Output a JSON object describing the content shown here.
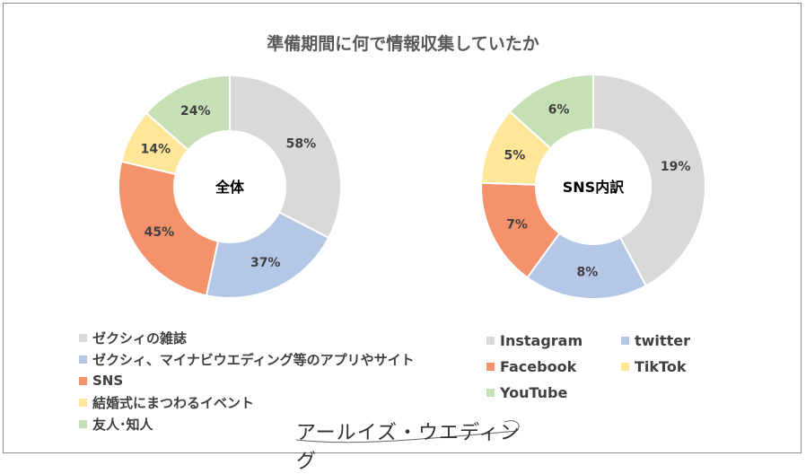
{
  "title": "準備期間に何で情報収集していたか",
  "chart_data": [
    {
      "type": "pie",
      "center_label": "全体",
      "categories": [
        "ゼクシィの雑誌",
        "ゼクシィ、マイナビウエディング等のアプリやサイト",
        "SNS",
        "結婚式にまつわるイベント",
        "友人･知人"
      ],
      "values": [
        58,
        37,
        45,
        14,
        24
      ],
      "labels": [
        "58%",
        "37%",
        "45%",
        "14%",
        "24%"
      ],
      "colors": [
        "#d9d9d9",
        "#b4c7e7",
        "#f4936b",
        "#ffe699",
        "#c5e0b4"
      ],
      "legend_position": "bottom-left"
    },
    {
      "type": "pie",
      "center_label": "SNS内訳",
      "categories": [
        "Instagram",
        "twitter",
        "Facebook",
        "TikTok",
        "YouTube"
      ],
      "values": [
        19,
        8,
        7,
        5,
        6
      ],
      "labels": [
        "19%",
        "8%",
        "7%",
        "5%",
        "6%"
      ],
      "colors": [
        "#d9d9d9",
        "#b4c7e7",
        "#f4936b",
        "#ffe699",
        "#c5e0b4"
      ],
      "legend_position": "bottom-right"
    }
  ],
  "logo_text": "アールイズ・ウエディング"
}
